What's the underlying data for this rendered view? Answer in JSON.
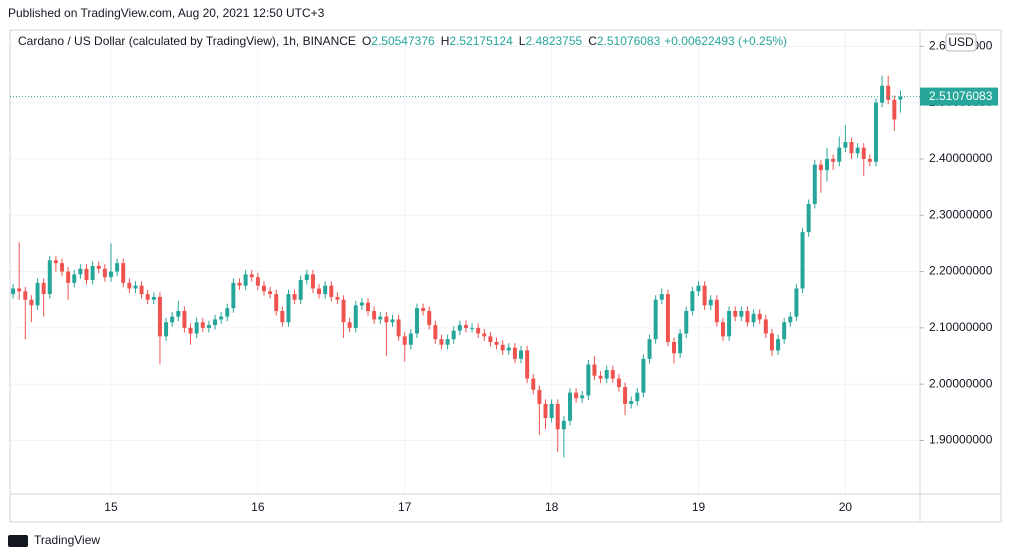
{
  "chart_data": {
    "type": "candlestick",
    "published": "Published on TradingView.com, Aug 20, 2021 12:50 UTC+3",
    "title": "Cardano / US Dollar (calculated by TradingView), 1h, BINANCE",
    "ohlc_labels": [
      "O",
      "H",
      "L",
      "C"
    ],
    "change": "+0.00622493 (+0.25%)",
    "currency": "USD",
    "brand": "TradingView",
    "up_color": "#26a69a",
    "down_color": "#ef5350",
    "categories": [
      null,
      null,
      null,
      null,
      null,
      null,
      null,
      null,
      null,
      null,
      null,
      null,
      null,
      null,
      null,
      null,
      "15",
      null,
      null,
      null,
      null,
      null,
      null,
      null,
      null,
      null,
      null,
      null,
      null,
      null,
      null,
      null,
      null,
      null,
      null,
      null,
      null,
      null,
      null,
      null,
      "16",
      null,
      null,
      null,
      null,
      null,
      null,
      null,
      null,
      null,
      null,
      null,
      null,
      null,
      null,
      null,
      null,
      null,
      null,
      null,
      null,
      null,
      null,
      null,
      "17",
      null,
      null,
      null,
      null,
      null,
      null,
      null,
      null,
      null,
      null,
      null,
      null,
      null,
      null,
      null,
      null,
      null,
      null,
      null,
      null,
      null,
      null,
      null,
      "18",
      null,
      null,
      null,
      null,
      null,
      null,
      null,
      null,
      null,
      null,
      null,
      null,
      null,
      null,
      null,
      null,
      null,
      null,
      null,
      null,
      null,
      null,
      null,
      "19",
      null,
      null,
      null,
      null,
      null,
      null,
      null,
      null,
      null,
      null,
      null,
      null,
      null,
      null,
      null,
      null,
      null,
      null,
      null,
      null,
      null,
      null,
      null,
      "20",
      null,
      null,
      null,
      null,
      null,
      null,
      null,
      null,
      null
    ],
    "open": [
      2.16,
      2.17,
      2.165,
      2.15,
      2.14,
      2.18,
      2.16,
      2.22,
      2.215,
      2.2,
      2.18,
      2.195,
      2.205,
      2.185,
      2.21,
      2.205,
      2.19,
      2.2,
      2.215,
      2.18,
      2.17,
      2.175,
      2.16,
      2.15,
      2.155,
      2.085,
      2.11,
      2.12,
      2.13,
      2.1,
      2.09,
      2.11,
      2.1,
      2.105,
      2.115,
      2.12,
      2.135,
      2.18,
      2.175,
      2.195,
      2.19,
      2.175,
      2.165,
      2.16,
      2.13,
      2.11,
      2.16,
      2.15,
      2.185,
      2.195,
      2.17,
      2.16,
      2.175,
      2.155,
      2.15,
      2.11,
      2.1,
      2.14,
      2.145,
      2.13,
      2.115,
      2.12,
      2.11,
      2.115,
      2.085,
      2.07,
      2.09,
      2.135,
      2.13,
      2.105,
      2.08,
      2.07,
      2.08,
      2.095,
      2.105,
      2.1,
      2.1,
      2.09,
      2.085,
      2.075,
      2.07,
      2.06,
      2.065,
      2.045,
      2.06,
      2.01,
      1.99,
      1.965,
      1.94,
      1.965,
      1.92,
      1.935,
      1.985,
      1.975,
      1.98,
      2.035,
      2.015,
      2.01,
      2.025,
      2.01,
      1.995,
      1.965,
      1.97,
      1.985,
      2.045,
      2.08,
      2.15,
      2.16,
      2.075,
      2.055,
      2.09,
      2.13,
      2.165,
      2.175,
      2.14,
      2.15,
      2.11,
      2.085,
      2.13,
      2.12,
      2.13,
      2.11,
      2.125,
      2.115,
      2.09,
      2.06,
      2.08,
      2.11,
      2.12,
      2.17,
      2.27,
      2.32,
      2.39,
      2.38,
      2.4,
      2.395,
      2.42,
      2.43,
      2.41,
      2.42,
      2.4,
      2.395,
      2.5,
      2.53,
      2.505,
      2.50547376
    ],
    "high": [
      2.178,
      2.252,
      2.173,
      2.158,
      2.188,
      2.188,
      2.228,
      2.228,
      2.223,
      2.208,
      2.203,
      2.213,
      2.213,
      2.218,
      2.218,
      2.213,
      2.25,
      2.223,
      2.223,
      2.188,
      2.183,
      2.183,
      2.168,
      2.163,
      2.163,
      2.118,
      2.128,
      2.148,
      2.138,
      2.108,
      2.118,
      2.118,
      2.113,
      2.123,
      2.128,
      2.143,
      2.188,
      2.188,
      2.203,
      2.203,
      2.198,
      2.183,
      2.173,
      2.168,
      2.138,
      2.168,
      2.168,
      2.193,
      2.203,
      2.203,
      2.178,
      2.183,
      2.183,
      2.163,
      2.158,
      2.118,
      2.148,
      2.153,
      2.153,
      2.138,
      2.128,
      2.128,
      2.123,
      2.123,
      2.093,
      2.098,
      2.143,
      2.143,
      2.138,
      2.113,
      2.088,
      2.088,
      2.103,
      2.113,
      2.113,
      2.108,
      2.108,
      2.098,
      2.093,
      2.083,
      2.078,
      2.073,
      2.073,
      2.068,
      2.068,
      2.018,
      1.998,
      1.973,
      1.973,
      1.973,
      1.943,
      1.993,
      1.993,
      1.988,
      2.043,
      2.05,
      2.023,
      2.033,
      2.033,
      2.018,
      2.003,
      1.978,
      1.993,
      2.053,
      2.088,
      2.158,
      2.17,
      2.168,
      2.083,
      2.098,
      2.138,
      2.173,
      2.183,
      2.183,
      2.158,
      2.158,
      2.118,
      2.138,
      2.138,
      2.138,
      2.138,
      2.133,
      2.133,
      2.123,
      2.098,
      2.088,
      2.118,
      2.128,
      2.178,
      2.278,
      2.328,
      2.398,
      2.398,
      2.42,
      2.408,
      2.44,
      2.46,
      2.438,
      2.428,
      2.428,
      2.408,
      2.508,
      2.548,
      2.548,
      2.513,
      2.52175124
    ],
    "low": [
      2.152,
      2.15,
      2.08,
      2.11,
      2.132,
      2.12,
      2.152,
      2.2,
      2.192,
      2.15,
      2.172,
      2.187,
      2.177,
      2.177,
      2.197,
      2.182,
      2.182,
      2.192,
      2.172,
      2.162,
      2.162,
      2.152,
      2.142,
      2.142,
      2.035,
      2.077,
      2.102,
      2.112,
      2.092,
      2.07,
      2.082,
      2.092,
      2.092,
      2.097,
      2.107,
      2.112,
      2.127,
      2.167,
      2.167,
      2.182,
      2.167,
      2.157,
      2.152,
      2.122,
      2.102,
      2.102,
      2.142,
      2.142,
      2.177,
      2.162,
      2.152,
      2.152,
      2.147,
      2.142,
      2.082,
      2.092,
      2.092,
      2.132,
      2.122,
      2.107,
      2.107,
      2.05,
      2.102,
      2.077,
      2.04,
      2.062,
      2.082,
      2.122,
      2.097,
      2.072,
      2.062,
      2.062,
      2.072,
      2.087,
      2.092,
      2.092,
      2.082,
      2.077,
      2.067,
      2.062,
      2.052,
      2.052,
      2.037,
      2.037,
      2.002,
      1.982,
      1.91,
      1.92,
      1.932,
      1.88,
      1.87,
      1.927,
      1.967,
      1.967,
      1.972,
      2.007,
      2.002,
      2.002,
      2.002,
      1.987,
      1.945,
      1.957,
      1.962,
      1.977,
      2.037,
      2.072,
      2.142,
      2.067,
      2.037,
      2.047,
      2.082,
      2.122,
      2.157,
      2.132,
      2.132,
      2.102,
      2.077,
      2.077,
      2.112,
      2.112,
      2.102,
      2.102,
      2.107,
      2.082,
      2.05,
      2.052,
      2.072,
      2.102,
      2.112,
      2.162,
      2.262,
      2.312,
      2.34,
      2.36,
      2.38,
      2.387,
      2.412,
      2.4,
      2.402,
      2.37,
      2.387,
      2.387,
      2.492,
      2.497,
      2.45,
      2.4823755
    ],
    "close": [
      2.17,
      2.165,
      2.15,
      2.14,
      2.18,
      2.16,
      2.22,
      2.215,
      2.2,
      2.18,
      2.195,
      2.205,
      2.185,
      2.21,
      2.205,
      2.19,
      2.2,
      2.215,
      2.18,
      2.17,
      2.175,
      2.16,
      2.15,
      2.155,
      2.085,
      2.11,
      2.12,
      2.13,
      2.1,
      2.09,
      2.11,
      2.1,
      2.105,
      2.115,
      2.12,
      2.135,
      2.18,
      2.175,
      2.195,
      2.19,
      2.175,
      2.165,
      2.16,
      2.13,
      2.11,
      2.16,
      2.15,
      2.185,
      2.195,
      2.17,
      2.16,
      2.175,
      2.155,
      2.15,
      2.11,
      2.1,
      2.14,
      2.145,
      2.13,
      2.115,
      2.12,
      2.11,
      2.115,
      2.085,
      2.07,
      2.09,
      2.135,
      2.13,
      2.105,
      2.08,
      2.07,
      2.08,
      2.095,
      2.105,
      2.1,
      2.1,
      2.09,
      2.085,
      2.075,
      2.07,
      2.06,
      2.065,
      2.045,
      2.06,
      2.01,
      1.99,
      1.965,
      1.94,
      1.965,
      1.92,
      1.935,
      1.985,
      1.975,
      1.98,
      2.035,
      2.015,
      2.01,
      2.025,
      2.01,
      1.995,
      1.965,
      1.97,
      1.985,
      2.045,
      2.08,
      2.15,
      2.16,
      2.075,
      2.055,
      2.09,
      2.13,
      2.165,
      2.175,
      2.14,
      2.15,
      2.11,
      2.085,
      2.13,
      2.12,
      2.13,
      2.11,
      2.125,
      2.115,
      2.09,
      2.06,
      2.08,
      2.11,
      2.12,
      2.17,
      2.27,
      2.32,
      2.39,
      2.38,
      2.4,
      2.395,
      2.42,
      2.43,
      2.41,
      2.42,
      2.4,
      2.395,
      2.5,
      2.53,
      2.505,
      2.47,
      2.51076083
    ],
    "ylim": [
      1.805,
      2.629
    ],
    "yticks": [
      {
        "value": 1.9,
        "label": "1.90000000"
      },
      {
        "value": 2.0,
        "label": "2.00000000"
      },
      {
        "value": 2.1,
        "label": "2.10000000"
      },
      {
        "value": 2.2,
        "label": "2.20000000"
      },
      {
        "value": 2.3,
        "label": "2.30000000"
      },
      {
        "value": 2.4,
        "label": "2.40000000"
      },
      {
        "value": 2.5,
        "label": "2.50000000"
      },
      {
        "value": 2.6,
        "label": "2.60000000"
      }
    ],
    "grid": true
  }
}
